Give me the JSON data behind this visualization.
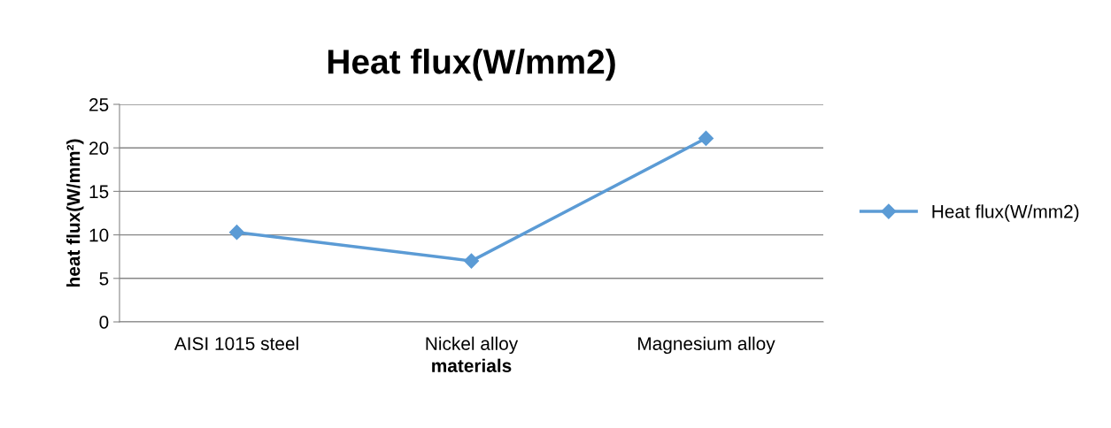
{
  "chart_data": {
    "type": "line",
    "title": "Heat flux(W/mm2)",
    "xlabel": "materials",
    "ylabel": "heat flux(W/mm²)",
    "categories": [
      "AISI 1015 steel",
      "Nickel alloy",
      "Magnesium alloy"
    ],
    "series": [
      {
        "name": "Heat flux(W/mm2)",
        "color": "#5b9bd5",
        "values": [
          10.3,
          7.0,
          21.1
        ]
      }
    ],
    "ylim": [
      0,
      25
    ],
    "yticks": [
      0,
      5,
      10,
      15,
      20,
      25
    ],
    "grid": "y",
    "legend": "right",
    "marker": "diamond",
    "line_style": "solid"
  }
}
